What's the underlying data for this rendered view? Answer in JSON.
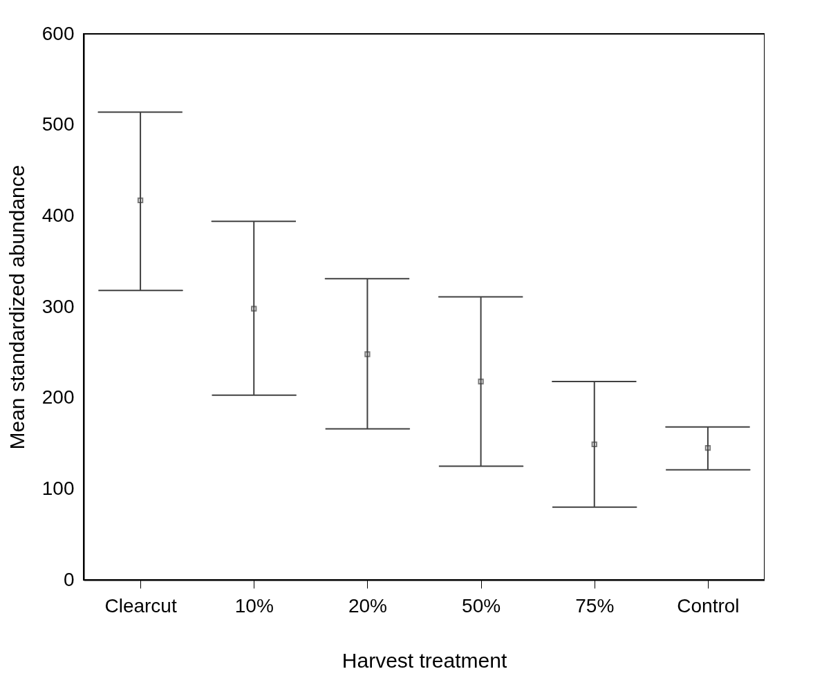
{
  "chart_data": {
    "type": "scatter",
    "xlabel": "Harvest treatment",
    "ylabel": "Mean standardized abundance",
    "categories": [
      "Clearcut",
      "10%",
      "20%",
      "50%",
      "75%",
      "Control"
    ],
    "values": [
      417,
      298,
      248,
      218,
      149,
      145
    ],
    "errors": [
      [
        318,
        514
      ],
      [
        203,
        394
      ],
      [
        166,
        331
      ],
      [
        125,
        311
      ],
      [
        80,
        218
      ],
      [
        121,
        168
      ]
    ],
    "color": "#404040",
    "marker": "square",
    "grid": false,
    "ylim": [
      0,
      600
    ],
    "yticks": [
      0,
      100,
      200,
      300,
      400,
      500,
      600
    ]
  }
}
